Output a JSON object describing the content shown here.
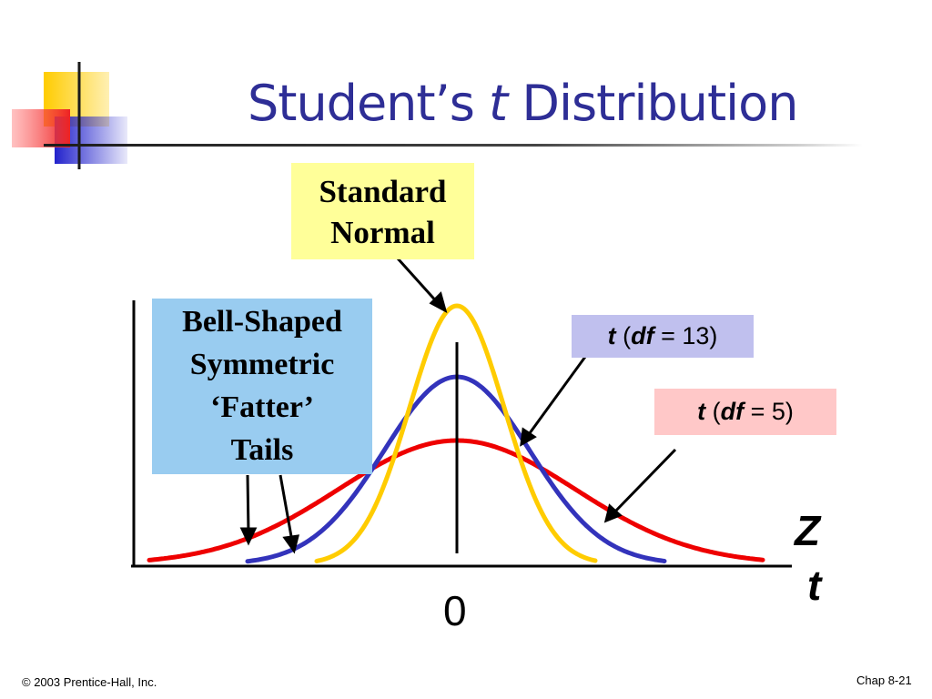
{
  "slide": {
    "title_prefix": "Student’s",
    "title_italic": "t",
    "title_suffix": "Distribution"
  },
  "callouts": {
    "standard_normal": {
      "line1": "Standard",
      "line2": "Normal"
    },
    "bell_shaped": {
      "line1": "Bell-Shaped",
      "line2": "Symmetric",
      "line3": "‘Fatter’",
      "line4": "Tails"
    },
    "df13": {
      "t": "t",
      "open": " (",
      "df": "df",
      "rest": " = 13)"
    },
    "df5": {
      "t": "t",
      "open": " (",
      "df": "df",
      "rest": " = 5)"
    }
  },
  "axis": {
    "z_label": "Z",
    "t_label": "t",
    "zero_label": "0"
  },
  "colors": {
    "standard_normal": "#ffcc00",
    "t_df13": "#3333bb",
    "t_df5": "#ee0000",
    "title": "#2e2e96"
  },
  "footer": {
    "copyright": "© 2003 Prentice-Hall, Inc.",
    "slide_number": "Chap 8-21"
  }
}
